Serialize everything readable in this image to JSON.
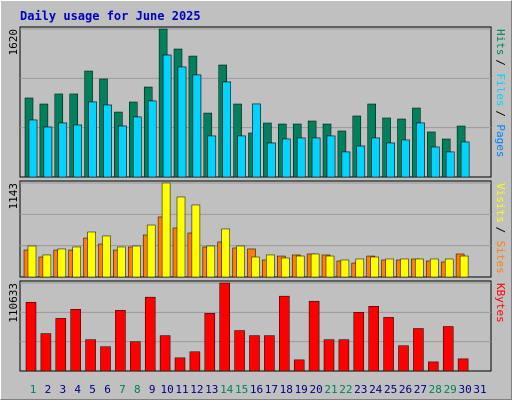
{
  "chart_data": [
    {
      "type": "bar",
      "title": "Daily usage for June 2025",
      "ylim": [
        0,
        1620
      ],
      "yticks": [
        1620
      ],
      "series": [
        {
          "name": "Pages",
          "color": "#0080ff",
          "values": [
            624,
            547,
            591,
            569,
            821,
            788,
            558,
            657,
            832,
            1335,
            1204,
            1117,
            449,
            1040,
            449,
            799,
            372,
            416,
            427,
            427,
            449,
            274,
            339,
            427,
            372,
            405,
            591,
            328,
            274,
            383,
            0
          ]
        },
        {
          "name": "Files",
          "color": "#00d4ff",
          "values": [
            624,
            547,
            591,
            569,
            821,
            788,
            558,
            657,
            832,
            1335,
            1204,
            1117,
            449,
            1040,
            449,
            799,
            372,
            416,
            427,
            427,
            449,
            274,
            339,
            427,
            372,
            405,
            591,
            328,
            274,
            383,
            0
          ]
        },
        {
          "name": "Hits",
          "color": "#00805c",
          "values": [
            865,
            799,
            909,
            909,
            1160,
            1073,
            711,
            821,
            985,
            1620,
            1401,
            1324,
            700,
            1226,
            799,
            482,
            591,
            580,
            580,
            613,
            580,
            504,
            668,
            799,
            646,
            635,
            755,
            493,
            416,
            558,
            0
          ]
        }
      ]
    },
    {
      "type": "bar",
      "ylim": [
        0,
        1143
      ],
      "yticks": [
        1143
      ],
      "series": [
        {
          "name": "Sites",
          "color": "#ff8000",
          "values": [
            328,
            243,
            328,
            328,
            474,
            401,
            328,
            365,
            511,
            730,
            596,
            535,
            365,
            426,
            353,
            341,
            207,
            255,
            268,
            280,
            268,
            195,
            170,
            255,
            207,
            207,
            219,
            195,
            183,
            280,
            0
          ]
        },
        {
          "name": "Visits",
          "color": "#ffff00",
          "values": [
            377,
            268,
            341,
            365,
            547,
            499,
            365,
            377,
            632,
            1143,
            973,
            876,
            377,
            584,
            377,
            243,
            268,
            231,
            255,
            280,
            255,
            207,
            219,
            243,
            219,
            219,
            219,
            219,
            219,
            255,
            0
          ]
        }
      ]
    },
    {
      "type": "bar",
      "ylim": [
        0,
        110633
      ],
      "yticks": [
        110633
      ],
      "categories": [
        "1",
        "2",
        "3",
        "4",
        "5",
        "6",
        "7",
        "8",
        "9",
        "10",
        "11",
        "12",
        "13",
        "14",
        "15",
        "16",
        "17",
        "18",
        "19",
        "20",
        "21",
        "22",
        "23",
        "24",
        "25",
        "26",
        "27",
        "28",
        "29",
        "30",
        "31"
      ],
      "label_colors": [
        "#00805c",
        "#000080",
        "#000080",
        "#000080",
        "#000080",
        "#000080",
        "#00805c",
        "#00805c",
        "#000080",
        "#000080",
        "#000080",
        "#000080",
        "#000080",
        "#00805c",
        "#00805c",
        "#000080",
        "#000080",
        "#000080",
        "#000080",
        "#000080",
        "#00805c",
        "#00805c",
        "#000080",
        "#000080",
        "#000080",
        "#000080",
        "#000080",
        "#00805c",
        "#00805c",
        "#000080",
        "#000080"
      ],
      "series": [
        {
          "name": "KBytes",
          "color": "#ff0000",
          "values": [
            86472,
            47050,
            66127,
            77571,
            39420,
            30519,
            76299,
            36877,
            92831,
            44507,
            16531,
            24161,
            72484,
            110633,
            50865,
            44507,
            44507,
            94102,
            13988,
            87744,
            39420,
            39420,
            73756,
            81386,
            67398,
            31791,
            53408,
            11444,
            55951,
            15259,
            0
          ]
        }
      ]
    }
  ]
}
